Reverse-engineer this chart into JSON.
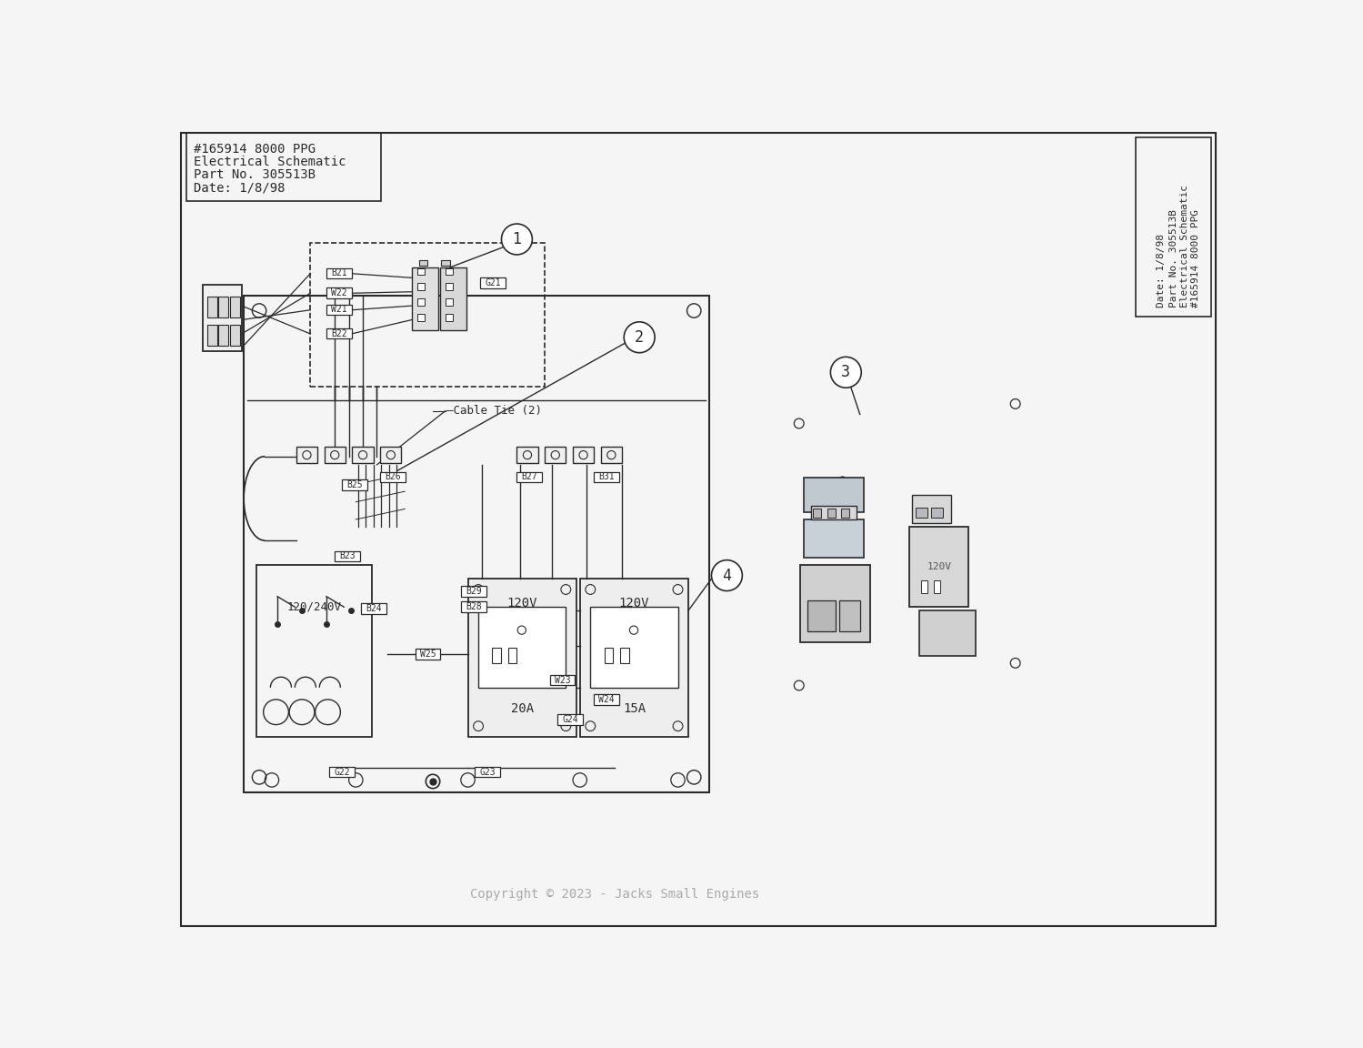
{
  "bg_color": "#f5f5f5",
  "line_color": "#2a2a2a",
  "info_box1": [
    "#165914 8000 PPG",
    "Electrical Schematic",
    "Part No. 305513B",
    "Date: 1/8/98"
  ],
  "info_box2": [
    "#165914 8000 PPG",
    "Electrical Schematic",
    "Part No. 305513B",
    "Date: 1/8/98"
  ],
  "copyright": "Copyright © 2023 - Jacks Small Engines",
  "cable_tie": "Cable Tie (2)",
  "callouts": [
    "1",
    "2",
    "3",
    "4"
  ],
  "part_labels_B": [
    "B21",
    "B22",
    "B23",
    "B24",
    "B25",
    "B26",
    "B27",
    "B28",
    "B29",
    "B31"
  ],
  "wire_labels_W": [
    "W21",
    "W22",
    "W23",
    "W24",
    "W25"
  ],
  "ground_labels_G": [
    "G21",
    "G22",
    "G23",
    "G24"
  ],
  "voltage_labels": [
    "120V",
    "120V",
    "120/240V"
  ],
  "current_labels": [
    "20A",
    "15A"
  ]
}
